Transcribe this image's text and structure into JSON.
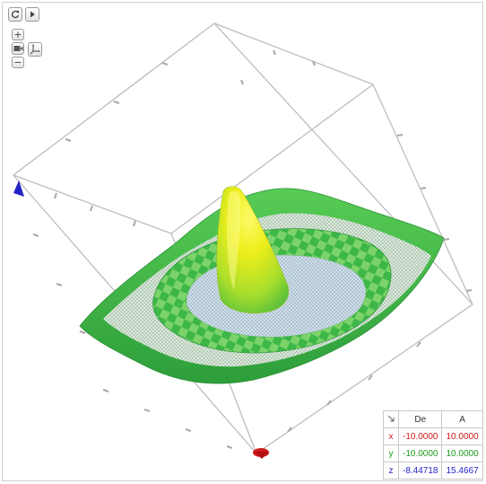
{
  "toolbar": {
    "refresh_icon": "refresh-icon",
    "play_icon": "play-icon",
    "zoom_in_label": "+",
    "camera_icon": "camera-icon",
    "axes_icon": "axes-icon",
    "zoom_out_label": "−"
  },
  "range_table": {
    "corner_icon": "diagonal-arrow-icon",
    "headers": [
      "De",
      "A"
    ],
    "rows": [
      {
        "axis": "x",
        "from": "-10.0000",
        "to": "10.0000"
      },
      {
        "axis": "y",
        "from": "-10.0000",
        "to": "10.0000"
      },
      {
        "axis": "z",
        "from": "-8.44718",
        "to": "15.4667"
      }
    ]
  },
  "colors": {
    "x_axis": "#d11a1a",
    "y_axis": "#1b9a1b",
    "z_axis": "#2323c8",
    "surface_low": "#2fa83a",
    "surface_high": "#f4f10a",
    "box": "#bdbdbd"
  }
}
